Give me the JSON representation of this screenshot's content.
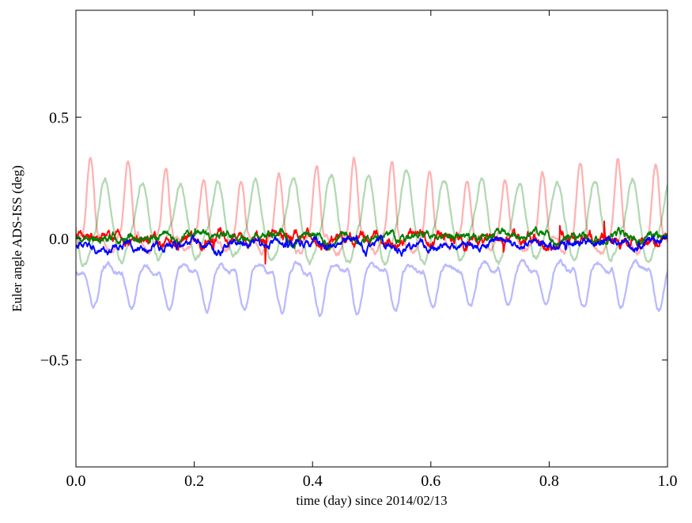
{
  "chart_data": {
    "type": "line",
    "title": "",
    "xlabel": "time (day) since 2014/02/13",
    "ylabel": "Euler angle ADS-ISS (deg)",
    "xlim": [
      0.0,
      1.0
    ],
    "ylim": [
      -0.94,
      0.94
    ],
    "xticks": {
      "values": [
        0.0,
        0.2,
        0.4,
        0.6,
        0.8,
        1.0
      ],
      "labels": [
        "0.0",
        "0.2",
        "0.4",
        "0.6",
        "0.8",
        "1.0"
      ]
    },
    "yticks": {
      "values": [
        -0.5,
        0.0,
        0.5
      ],
      "labels": [
        "−0.5",
        "0.0",
        "0.5"
      ]
    },
    "grid": false,
    "legend": "none",
    "background": "#ffffff",
    "frame_color": "#000000",
    "orbital_cycles_per_day": 15.7,
    "samples_per_day": 1440,
    "series": [
      {
        "name": "pale-red-orbital-oscillation",
        "kind": "periodic",
        "color": "#ff0000",
        "alpha": 0.3,
        "width": 2.3,
        "approx_min": -0.07,
        "approx_max": 0.33,
        "approx_mean": 0.05,
        "model": {
          "seed": 11,
          "cycles": 15.7,
          "phase": -0.14,
          "offset": 0.015,
          "drift": -0.01,
          "ampPos": 0.27,
          "powPos": 3.0,
          "ampNeg": 0.055,
          "powNeg": 1.2,
          "harm2": 0.012,
          "envAmp": 0.18,
          "envCycles": 2.3,
          "envPhase": 1.0,
          "noise": 0.006
        }
      },
      {
        "name": "pale-green-orbital-oscillation",
        "kind": "periodic",
        "color": "#008000",
        "alpha": 0.3,
        "width": 2.3,
        "approx_min": -0.1,
        "approx_max": 0.27,
        "approx_mean": 0.05,
        "model": {
          "seed": 22,
          "cycles": 15.7,
          "phase": -0.5,
          "offset": 0.045,
          "drift": 0.0,
          "ampPos": 0.2,
          "powPos": 1.4,
          "ampNeg": 0.135,
          "powNeg": 1.0,
          "harm2": -0.02,
          "envAmp": 0.12,
          "envCycles": 1.7,
          "envPhase": 2.5,
          "noise": 0.006
        }
      },
      {
        "name": "pale-blue-orbital-oscillation",
        "kind": "periodic",
        "color": "#0000ff",
        "alpha": 0.27,
        "width": 2.3,
        "approx_min": -0.32,
        "approx_max": -0.12,
        "approx_mean": -0.2,
        "model": {
          "seed": 33,
          "cycles": 15.7,
          "phase": 0.3,
          "offset": -0.145,
          "drift": 0.02,
          "ampPos": 0.02,
          "powPos": 1.0,
          "ampNeg": 0.155,
          "powNeg": 1.6,
          "harm2": 0.018,
          "envAmp": 0.1,
          "envCycles": 1.5,
          "envPhase": 4.0,
          "noise": 0.005
        }
      },
      {
        "name": "red-euler-angle-residual",
        "kind": "ar1",
        "color": "#ff0000",
        "alpha": 1.0,
        "width": 1.9,
        "approx_min": -0.1,
        "approx_max": 0.12,
        "approx_mean": 0.0,
        "model": {
          "seed": 44,
          "a": 0.93,
          "b": 0.012,
          "offset": 0.0,
          "orbAmp": 0.012,
          "cycles": 15.7,
          "phase": 0.2,
          "spikeProb": 0.004,
          "spikeAmp": 0.1,
          "spikeDecay": 0.72
        }
      },
      {
        "name": "green-euler-angle-residual",
        "kind": "ar1",
        "color": "#008000",
        "alpha": 1.0,
        "width": 1.9,
        "approx_min": -0.06,
        "approx_max": 0.07,
        "approx_mean": 0.005,
        "model": {
          "seed": 55,
          "a": 0.93,
          "b": 0.009,
          "offset": 0.005,
          "orbAmp": 0.01,
          "cycles": 15.7,
          "phase": 2.0,
          "spikeProb": 0.002,
          "spikeAmp": 0.05,
          "spikeDecay": 0.7
        }
      },
      {
        "name": "blue-euler-angle-residual",
        "kind": "ar1",
        "color": "#0000ff",
        "alpha": 1.0,
        "width": 1.9,
        "approx_min": -0.08,
        "approx_max": 0.05,
        "approx_mean": -0.02,
        "model": {
          "seed": 66,
          "a": 0.93,
          "b": 0.009,
          "offset": -0.022,
          "orbAmp": 0.013,
          "cycles": 15.7,
          "phase": 4.0,
          "spikeProb": 0.002,
          "spikeAmp": 0.05,
          "spikeDecay": 0.7
        }
      }
    ]
  }
}
